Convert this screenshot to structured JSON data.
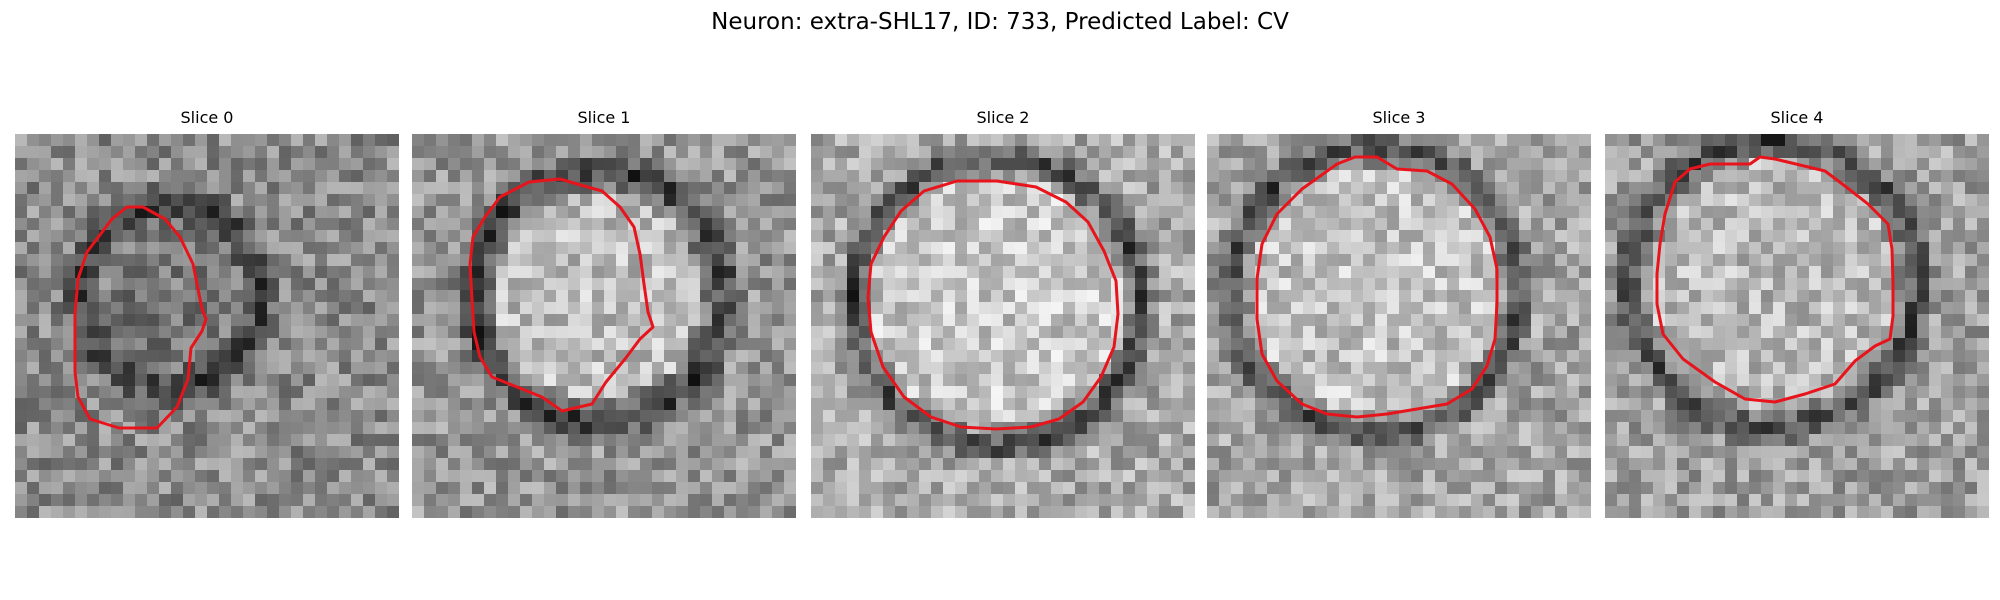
{
  "figure": {
    "title": "Neuron: extra-SHL17, ID: 733, Predicted Label: CV"
  },
  "panels": [
    {
      "title": "Slice 0"
    },
    {
      "title": "Slice 1"
    },
    {
      "title": "Slice 2"
    },
    {
      "title": "Slice 3"
    },
    {
      "title": "Slice 4"
    }
  ],
  "colors": {
    "contour": "#e8141c",
    "background": "#ffffff"
  }
}
